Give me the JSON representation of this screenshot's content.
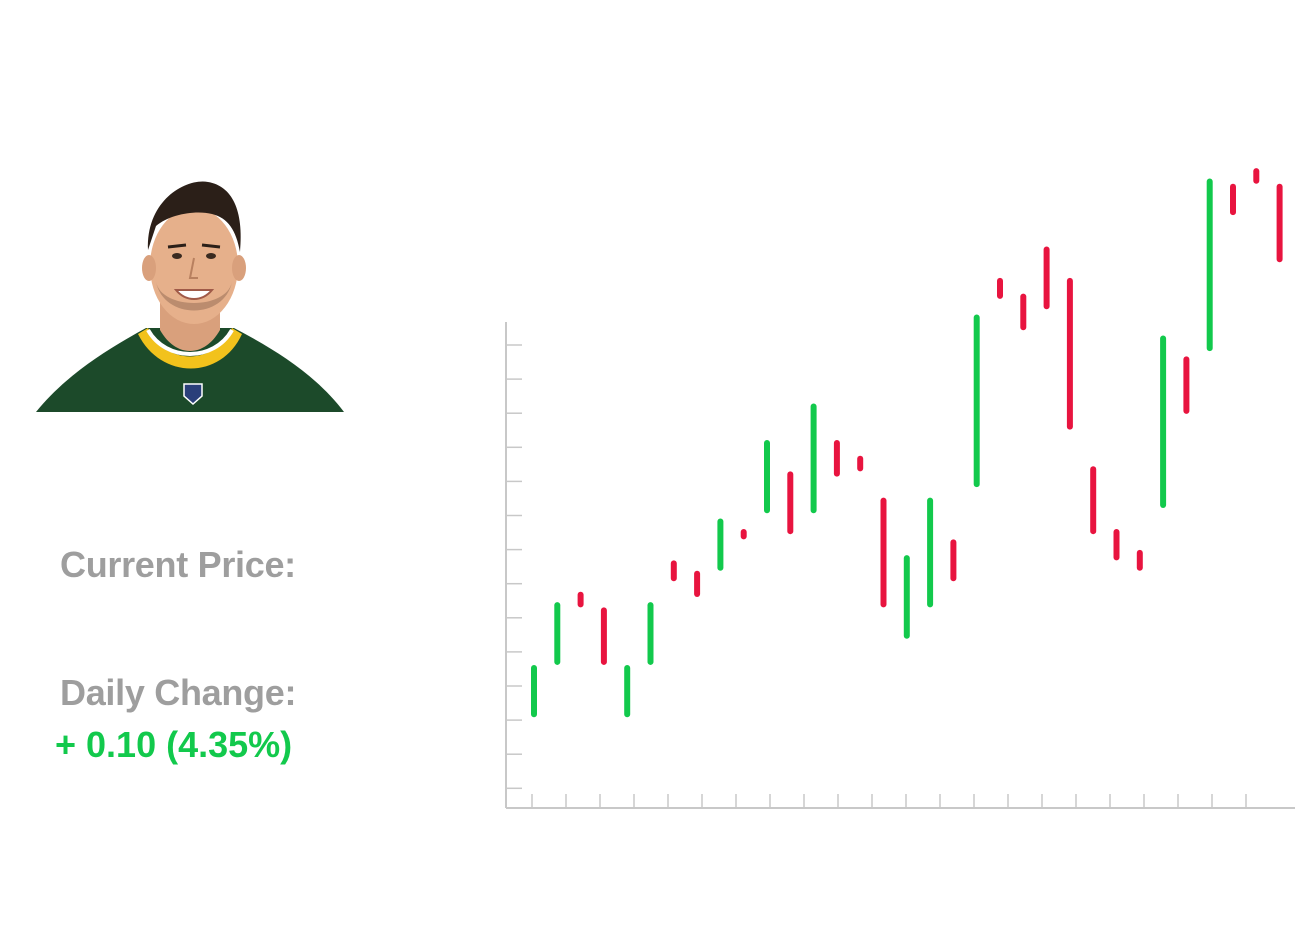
{
  "labels": {
    "current_price": "Current Price:",
    "current_price_value": "",
    "daily_change": "Daily Change:",
    "daily_change_value": "+ 0.10 (4.35%)"
  },
  "colors": {
    "up": "#12c94c",
    "down": "#e8143f",
    "axis": "#c8c8c8",
    "label": "#9e9e9e"
  },
  "player_photo": {
    "description_icon": "player-portrait",
    "jersey_color": "#1c4a2a",
    "trim_color": "#f2c21c"
  },
  "chart_data": {
    "type": "candlestick",
    "title": "",
    "xlabel": "",
    "ylabel": "",
    "tick_labels_shown": false,
    "grid": false,
    "ylim": [
      0,
      100
    ],
    "series": [
      {
        "open": 12,
        "close": 22
      },
      {
        "open": 22,
        "close": 34
      },
      {
        "open": 36,
        "close": 33
      },
      {
        "open": 33,
        "close": 22
      },
      {
        "open": 12,
        "close": 22
      },
      {
        "open": 22,
        "close": 34
      },
      {
        "open": 42,
        "close": 38
      },
      {
        "open": 40,
        "close": 35
      },
      {
        "open": 40,
        "close": 50
      },
      {
        "open": 48,
        "close": 46
      },
      {
        "open": 51,
        "close": 65
      },
      {
        "open": 59,
        "close": 47
      },
      {
        "open": 51,
        "close": 72
      },
      {
        "open": 65,
        "close": 58
      },
      {
        "open": 62,
        "close": 59
      },
      {
        "open": 54,
        "close": 33
      },
      {
        "open": 27,
        "close": 43
      },
      {
        "open": 33,
        "close": 54
      },
      {
        "open": 46,
        "close": 38
      },
      {
        "open": 56,
        "close": 89
      },
      {
        "open": 96,
        "close": 92
      },
      {
        "open": 93,
        "close": 86
      },
      {
        "open": 102,
        "close": 90
      },
      {
        "open": 96,
        "close": 67
      },
      {
        "open": 60,
        "close": 47
      },
      {
        "open": 48,
        "close": 42
      },
      {
        "open": 44,
        "close": 40
      },
      {
        "open": 52,
        "close": 85
      },
      {
        "open": 81,
        "close": 70
      },
      {
        "open": 82,
        "close": 115
      },
      {
        "open": 114,
        "close": 108
      },
      {
        "open": 117,
        "close": 114
      },
      {
        "open": 114,
        "close": 99
      }
    ]
  }
}
